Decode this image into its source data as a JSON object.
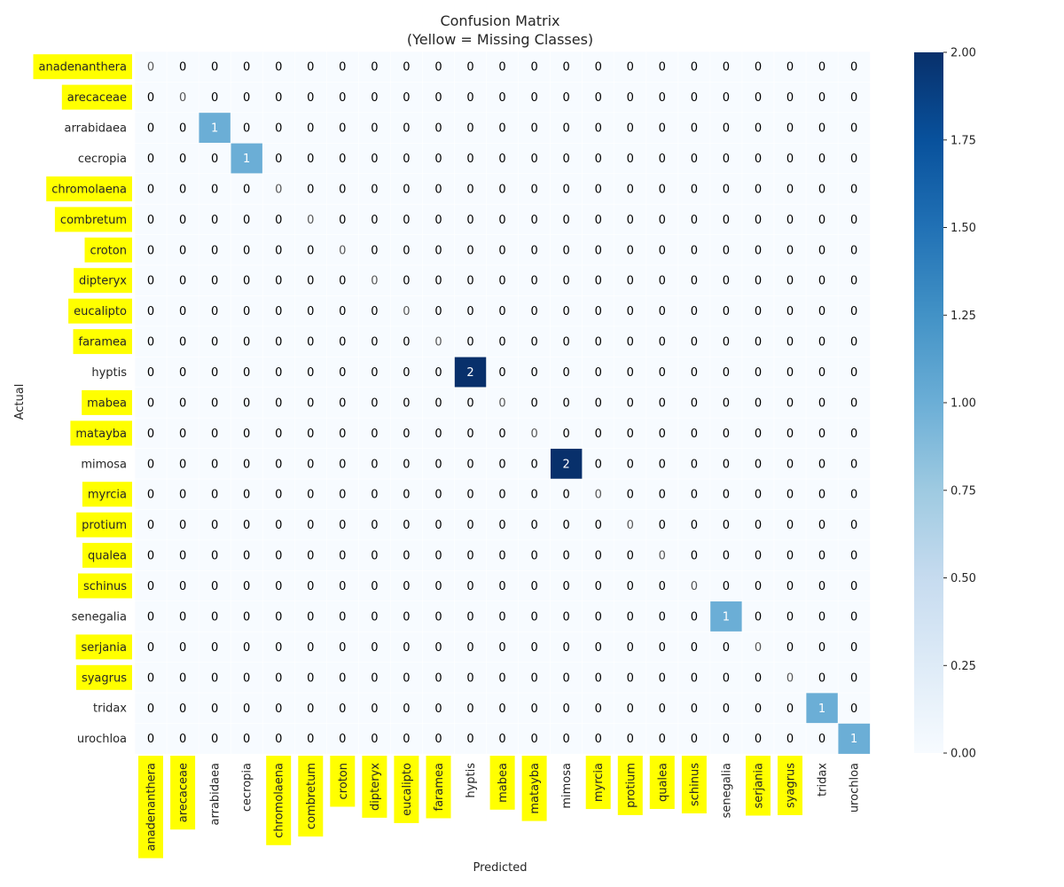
{
  "chart_data": {
    "type": "heatmap",
    "title": "Confusion Matrix",
    "subtitle": "(Yellow = Missing Classes)",
    "xlabel": "Predicted",
    "ylabel": "Actual",
    "classes": [
      "anadenanthera",
      "arecaceae",
      "arrabidaea",
      "cecropia",
      "chromolaena",
      "combretum",
      "croton",
      "dipteryx",
      "eucalipto",
      "faramea",
      "hyptis",
      "mabea",
      "matayba",
      "mimosa",
      "myrcia",
      "protium",
      "qualea",
      "schinus",
      "senegalia",
      "serjania",
      "syagrus",
      "tridax",
      "urochloa"
    ],
    "missing_classes": [
      "anadenanthera",
      "arecaceae",
      "chromolaena",
      "combretum",
      "croton",
      "dipteryx",
      "eucalipto",
      "faramea",
      "mabea",
      "matayba",
      "myrcia",
      "protium",
      "qualea",
      "schinus",
      "serjania",
      "syagrus"
    ],
    "nonzero_cells": [
      {
        "actual": "arrabidaea",
        "predicted": "arrabidaea",
        "value": 1
      },
      {
        "actual": "cecropia",
        "predicted": "cecropia",
        "value": 1
      },
      {
        "actual": "hyptis",
        "predicted": "hyptis",
        "value": 2
      },
      {
        "actual": "mimosa",
        "predicted": "mimosa",
        "value": 2
      },
      {
        "actual": "senegalia",
        "predicted": "senegalia",
        "value": 1
      },
      {
        "actual": "tridax",
        "predicted": "tridax",
        "value": 1
      },
      {
        "actual": "urochloa",
        "predicted": "urochloa",
        "value": 1
      }
    ],
    "colorbar": {
      "range": [
        0,
        2
      ],
      "ticks": [
        "0.00",
        "0.25",
        "0.50",
        "0.75",
        "1.00",
        "1.25",
        "1.50",
        "1.75",
        "2.00"
      ],
      "colormap": "Blues"
    },
    "colors": {
      "highlight": "#ffff00",
      "low": "#f7fbff",
      "high": "#08306b"
    }
  }
}
